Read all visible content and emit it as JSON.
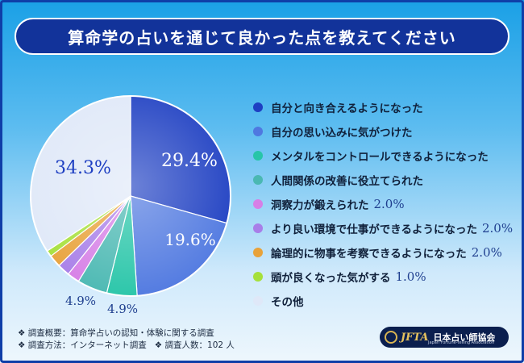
{
  "title": "算命学の占いを通じて良かった点を教えてください",
  "chart_data": {
    "type": "pie",
    "slices": [
      {
        "label": "自分と向き合えるようになった",
        "value": 29.4,
        "value_label": "29.4%",
        "color": "#1e3fc2"
      },
      {
        "label": "自分の思い込みに気がつけた",
        "value": 19.6,
        "value_label": "19.6%",
        "color": "#4f78e0"
      },
      {
        "label": "メンタルをコントロールできるようになった",
        "value": 4.9,
        "value_label": "4.9%",
        "color": "#27c5a8"
      },
      {
        "label": "人間関係の改善に役立てられた",
        "value": 4.9,
        "value_label": "4.9%",
        "color": "#4ab8b2"
      },
      {
        "label": "洞察力が鍛えられた",
        "value": 2.0,
        "value_label": "2.0%",
        "color": "#d67fe6"
      },
      {
        "label": "より良い環境で仕事ができるようになった",
        "value": 2.0,
        "value_label": "2.0%",
        "color": "#a87ee8"
      },
      {
        "label": "論理的に物事を考察できるようになった",
        "value": 2.0,
        "value_label": "2.0%",
        "color": "#e8a23a"
      },
      {
        "label": "頭が良くなった気がする",
        "value": 1.0,
        "value_label": "1.0%",
        "color": "#a6e03a"
      },
      {
        "label": "その他",
        "value": 34.3,
        "value_label": "34.3%",
        "color": "#dfe8f8"
      }
    ]
  },
  "legend": [
    {
      "label": "自分と向き合えるようになった",
      "value": ""
    },
    {
      "label": "自分の思い込みに気がつけた",
      "value": ""
    },
    {
      "label": "メンタルをコントロールできるようになった",
      "value": ""
    },
    {
      "label": "人間関係の改善に役立てられた",
      "value": ""
    },
    {
      "label": "洞察力が鍛えられた",
      "value": "2.0%"
    },
    {
      "label": "より良い環境で仕事ができるようになった",
      "value": "2.0%"
    },
    {
      "label": "論理的に物事を考察できるようになった",
      "value": "2.0%"
    },
    {
      "label": "頭が良くなった気がする",
      "value": "1.0%"
    },
    {
      "label": "その他",
      "value": ""
    }
  ],
  "footer": {
    "line1": "❖ 調査概要：算命学占いの認知・体験に関する調査",
    "line2a": "❖ 調査方法：インターネット調査",
    "line2b": "❖ 調査人数：102 人"
  },
  "logo": {
    "mark": "JFTA",
    "name": "日本占い師協会",
    "sub": "Japan Fortune-telling Association"
  }
}
